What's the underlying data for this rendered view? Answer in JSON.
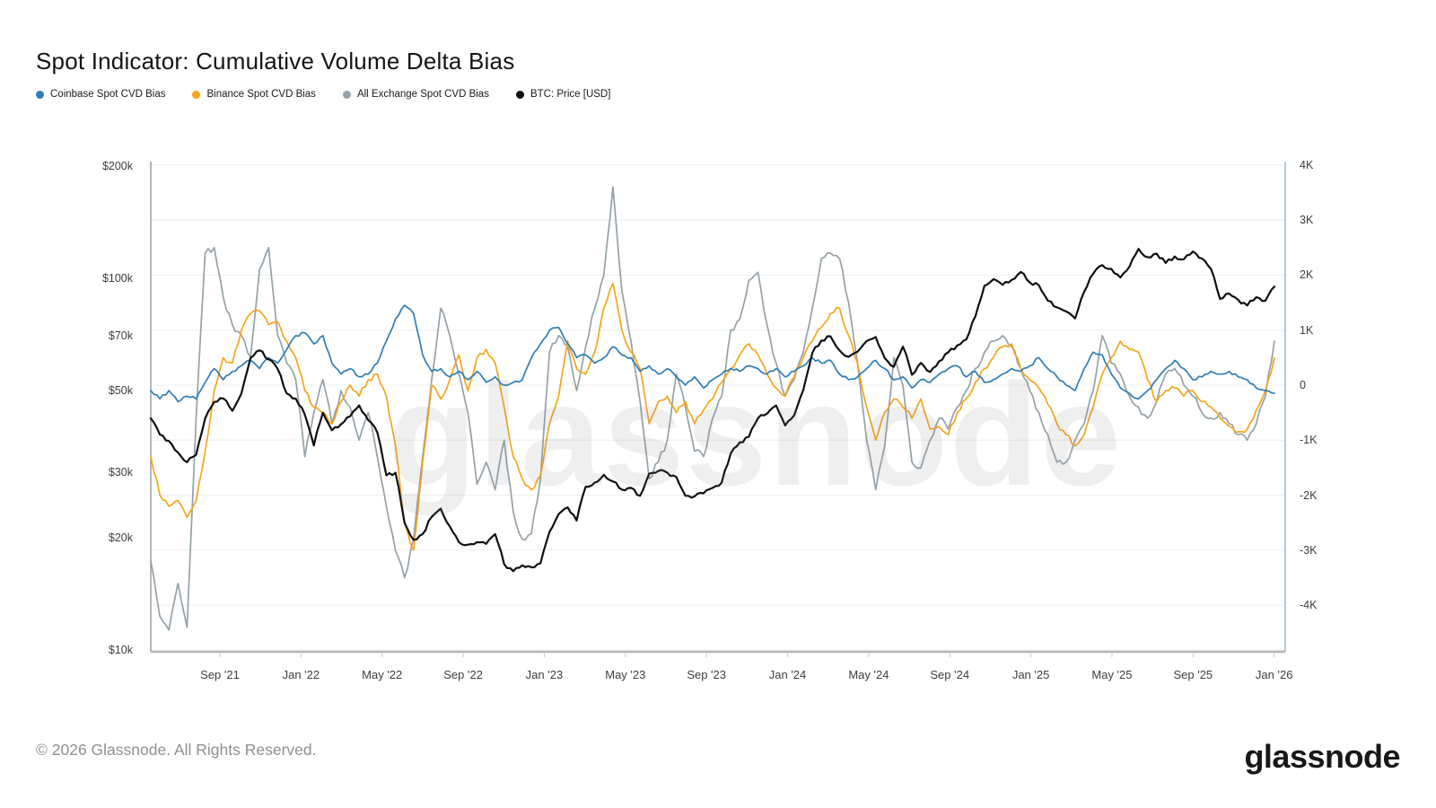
{
  "title": "Spot Indicator: Cumulative Volume Delta Bias",
  "watermark": "glassnode",
  "footer": {
    "copyright": "© 2026 Glassnode. All Rights Reserved.",
    "logo": "glassnode"
  },
  "legend": [
    {
      "id": "coinbase",
      "label": "Coinbase Spot CVD Bias",
      "color": "#2f7db5"
    },
    {
      "id": "binance",
      "label": "Binance Spot CVD Bias",
      "color": "#f7a41b"
    },
    {
      "id": "all-exchange",
      "label": "All Exchange Spot CVD Bias",
      "color": "#94a1a9"
    },
    {
      "id": "btc-price",
      "label": "BTC: Price [USD]",
      "color": "#0f0f0f"
    }
  ],
  "chart_data": {
    "type": "line",
    "title": "Spot Indicator: Cumulative Volume Delta Bias",
    "x_axis": {
      "range": [
        "May '21",
        "Jan '26"
      ],
      "sample_interval_days": 13.6,
      "ticks": [
        "Sep '21",
        "Jan '22",
        "May '22",
        "Sep '22",
        "Jan '23",
        "May '23",
        "Sep '23",
        "Jan '24",
        "May '24",
        "Sep '24",
        "Jan '25",
        "May '25",
        "Sep '25",
        "Jan '26"
      ]
    },
    "y_axis_left": {
      "scale": "log",
      "unit": "USD",
      "tick_labels": [
        "$200k",
        "$100k",
        "$70k",
        "$50k",
        "$30k",
        "$20k",
        "$10k"
      ],
      "tick_values": [
        200,
        100,
        70,
        50,
        30,
        20,
        10
      ],
      "range_thousands": [
        10,
        210
      ]
    },
    "y_axis_right": {
      "scale": "linear",
      "unit": "K",
      "tick_labels": [
        "4K",
        "3K",
        "2K",
        "1K",
        "0",
        "-1K",
        "-2K",
        "-3K",
        "-4K"
      ],
      "tick_values": [
        4,
        3,
        2,
        1,
        0,
        -1,
        -2,
        -3,
        -4
      ],
      "range": [
        -4.85,
        4.05
      ]
    },
    "grid": "horizontal",
    "legend_position": "top-left",
    "series": [
      {
        "id": "coinbase",
        "name": "Coinbase Spot CVD Bias",
        "axis": "right",
        "unit": "K",
        "color": "#2f7db5",
        "values": [
          -0.1,
          -0.25,
          -0.1,
          -0.3,
          -0.2,
          -0.25,
          0.05,
          0.3,
          0.1,
          0.25,
          0.35,
          0.45,
          0.3,
          0.5,
          0.4,
          0.65,
          0.9,
          0.95,
          0.75,
          0.9,
          0.4,
          0.2,
          0.3,
          0.15,
          0.2,
          0.4,
          0.8,
          1.2,
          1.45,
          1.3,
          0.55,
          0.25,
          0.3,
          0.15,
          0.25,
          0.1,
          0.25,
          0.05,
          0.15,
          0,
          0.05,
          0.1,
          0.5,
          0.75,
          1.0,
          1.05,
          0.75,
          0.5,
          0.55,
          0.4,
          0.5,
          0.7,
          0.55,
          0.5,
          0.25,
          0.35,
          0.2,
          0.3,
          0.15,
          0,
          0.15,
          -0.05,
          0.1,
          0.2,
          0.3,
          0.25,
          0.35,
          0.3,
          0.2,
          0.3,
          0.15,
          0.25,
          0.35,
          0.5,
          0.4,
          0.45,
          0.2,
          0.1,
          0.15,
          0.3,
          0.45,
          0.3,
          0.1,
          0.15,
          -0.05,
          0.1,
          0.05,
          0.2,
          0.3,
          0.35,
          0.15,
          0.25,
          0.05,
          0.1,
          0.2,
          0.3,
          0.25,
          0.35,
          0.5,
          0.3,
          0.15,
          0,
          -0.1,
          0.3,
          0.6,
          0.55,
          0.2,
          -0.05,
          -0.15,
          -0.25,
          -0.1,
          0.1,
          0.3,
          0.45,
          0.3,
          0.1,
          0.15,
          0.25,
          0.2,
          0.25,
          0.15,
          0.1,
          -0.05,
          -0.1,
          -0.15
        ]
      },
      {
        "id": "binance",
        "name": "Binance Spot CVD Bias",
        "axis": "right",
        "unit": "K",
        "color": "#f7a41b",
        "values": [
          -1.3,
          -2.0,
          -2.2,
          -2.1,
          -2.4,
          -2.1,
          -1.2,
          -0.1,
          0.5,
          0.4,
          1.0,
          1.3,
          1.35,
          1.1,
          1.15,
          0.8,
          0.5,
          -0.1,
          -0.4,
          -0.5,
          -0.7,
          -0.3,
          0,
          -0.2,
          0.1,
          0.2,
          -0.2,
          -1.1,
          -2.5,
          -3.0,
          -1.4,
          0,
          -0.25,
          0.1,
          0.55,
          -0.1,
          0.5,
          0.65,
          0.4,
          -0.4,
          -1.3,
          -1.7,
          -1.9,
          -1.65,
          -0.7,
          -0.2,
          0.8,
          0.3,
          0.2,
          0.6,
          1.4,
          1.85,
          1.0,
          0.6,
          0.3,
          -0.7,
          -0.3,
          -0.2,
          -0.5,
          -0.3,
          -0.7,
          -0.45,
          -0.25,
          0.05,
          0.3,
          0.55,
          0.75,
          0.55,
          0.2,
          -0.05,
          -0.2,
          0.15,
          0.5,
          0.8,
          1.05,
          1.3,
          1.4,
          0.9,
          0.4,
          -0.4,
          -1.0,
          -0.5,
          -0.25,
          -0.4,
          -0.6,
          -0.25,
          -0.8,
          -0.75,
          -0.9,
          -0.5,
          -0.25,
          0.05,
          0.3,
          0.5,
          0.7,
          0.75,
          0.3,
          0.1,
          -0.05,
          -0.35,
          -0.7,
          -0.9,
          -1.1,
          -0.9,
          -0.4,
          0.2,
          0.5,
          0.8,
          0.65,
          0.6,
          0.1,
          -0.3,
          -0.1,
          -0.05,
          -0.2,
          -0.1,
          -0.3,
          -0.4,
          -0.6,
          -0.75,
          -0.85,
          -0.8,
          -0.45,
          -0.1,
          0.5
        ]
      },
      {
        "id": "all-exchange",
        "name": "All Exchange Spot CVD Bias",
        "axis": "right",
        "unit": "K",
        "color": "#94a1a9",
        "values": [
          -3.2,
          -4.2,
          -4.45,
          -3.6,
          -4.4,
          -0.6,
          2.4,
          2.5,
          1.6,
          1.1,
          0.9,
          0.5,
          2.1,
          2.5,
          0.9,
          0.4,
          0.1,
          -1.3,
          -0.5,
          0.1,
          -0.7,
          -0.1,
          -0.4,
          -1.0,
          -0.5,
          -1.3,
          -2.2,
          -3.0,
          -3.5,
          -2.8,
          -1.3,
          0.1,
          1.4,
          0.9,
          0.2,
          -0.5,
          -1.8,
          -1.4,
          -1.9,
          -1.0,
          -2.3,
          -2.8,
          -2.7,
          -1.7,
          0.6,
          0.9,
          0.7,
          -0.1,
          0.7,
          1.4,
          2.0,
          3.6,
          1.7,
          0.8,
          -0.3,
          -1.7,
          -1.4,
          -1.0,
          0.2,
          -0.4,
          -1.2,
          -1.3,
          -0.6,
          -0.2,
          1.0,
          1.2,
          1.9,
          2.05,
          1.1,
          0.4,
          -0.2,
          0.1,
          0.6,
          1.4,
          2.3,
          2.4,
          2.3,
          1.5,
          0.4,
          -1.0,
          -1.9,
          -1.1,
          0.5,
          0,
          -1.4,
          -1.5,
          -1.0,
          -0.6,
          -0.8,
          -0.4,
          -0.1,
          0.3,
          0.6,
          0.8,
          0.9,
          0.7,
          0.3,
          -0.1,
          -0.5,
          -0.9,
          -1.4,
          -1.4,
          -1.0,
          -0.7,
          -0.1,
          0.9,
          0.4,
          0.2,
          -0.2,
          -0.4,
          -0.6,
          -0.3,
          0.2,
          0.3,
          0,
          -0.2,
          -0.5,
          -0.6,
          -0.5,
          -0.7,
          -0.9,
          -1.0,
          -0.7,
          -0.2,
          0.8
        ]
      },
      {
        "id": "btc-price",
        "name": "BTC: Price [USD]",
        "axis": "left",
        "unit": "USD thousands",
        "color": "#0f0f0f",
        "values": [
          42,
          38,
          36.5,
          34,
          32,
          33.5,
          42,
          46.5,
          47.5,
          44,
          49,
          61,
          64,
          60.5,
          57,
          49,
          47.5,
          43,
          35.5,
          43.5,
          39,
          40.5,
          42.5,
          45.5,
          41.5,
          38.5,
          29.5,
          30,
          22,
          19.8,
          20.5,
          22.8,
          24,
          21.5,
          19.5,
          19.2,
          19.5,
          19.3,
          20.5,
          17,
          16.3,
          16.9,
          16.7,
          17.1,
          20.8,
          23.2,
          24.2,
          22.3,
          27.5,
          28.2,
          29.6,
          28.4,
          27,
          27.3,
          26,
          29.8,
          30.3,
          30,
          29.2,
          26,
          25.9,
          26.4,
          27.3,
          28.2,
          33.8,
          36.2,
          37.5,
          42,
          43.2,
          45.5,
          40.2,
          42.8,
          50,
          63,
          68,
          69.8,
          64,
          61.5,
          63.5,
          67.8,
          69.5,
          61,
          57.8,
          65.5,
          55,
          59.2,
          56,
          59.8,
          63.2,
          66,
          68.5,
          79,
          95.5,
          99.5,
          96,
          99,
          104,
          97.5,
          95.8,
          87,
          83.5,
          81.5,
          78,
          92,
          103,
          108.5,
          106,
          100.5,
          107.5,
          120,
          114,
          116.5,
          110,
          114.5,
          112.5,
          118,
          113,
          106,
          88,
          91,
          87.5,
          84.5,
          89,
          87,
          95
        ]
      }
    ]
  }
}
